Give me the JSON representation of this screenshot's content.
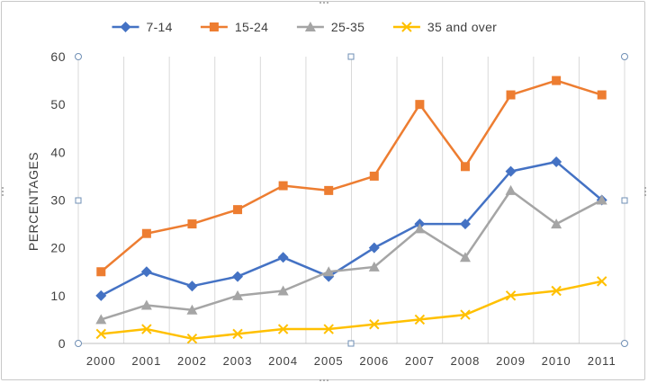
{
  "chart_data": {
    "type": "line",
    "title": "",
    "xlabel": "",
    "ylabel": "PERCENTAGES",
    "ylim": [
      0,
      60
    ],
    "yticks": [
      0,
      10,
      20,
      30,
      40,
      50,
      60
    ],
    "grid": "vertical",
    "legend_position": "top",
    "categories": [
      "2000",
      "2001",
      "2002",
      "2003",
      "2004",
      "2005",
      "2006",
      "2007",
      "2008",
      "2009",
      "2010",
      "2011"
    ],
    "series": [
      {
        "name": "7-14",
        "color": "#4472c4",
        "marker": "diamond",
        "values": [
          10,
          15,
          12,
          14,
          18,
          14,
          20,
          25,
          25,
          36,
          38,
          30
        ]
      },
      {
        "name": "15-24",
        "color": "#ed7d31",
        "marker": "square",
        "values": [
          15,
          23,
          25,
          28,
          33,
          32,
          35,
          50,
          37,
          52,
          55,
          52
        ]
      },
      {
        "name": "25-35",
        "color": "#a5a5a5",
        "marker": "triangle",
        "values": [
          5,
          8,
          7,
          10,
          11,
          15,
          16,
          24,
          18,
          32,
          25,
          30
        ]
      },
      {
        "name": "35 and over",
        "color": "#ffc000",
        "marker": "x",
        "values": [
          2,
          3,
          1,
          2,
          3,
          3,
          4,
          5,
          6,
          10,
          11,
          13
        ]
      }
    ]
  }
}
